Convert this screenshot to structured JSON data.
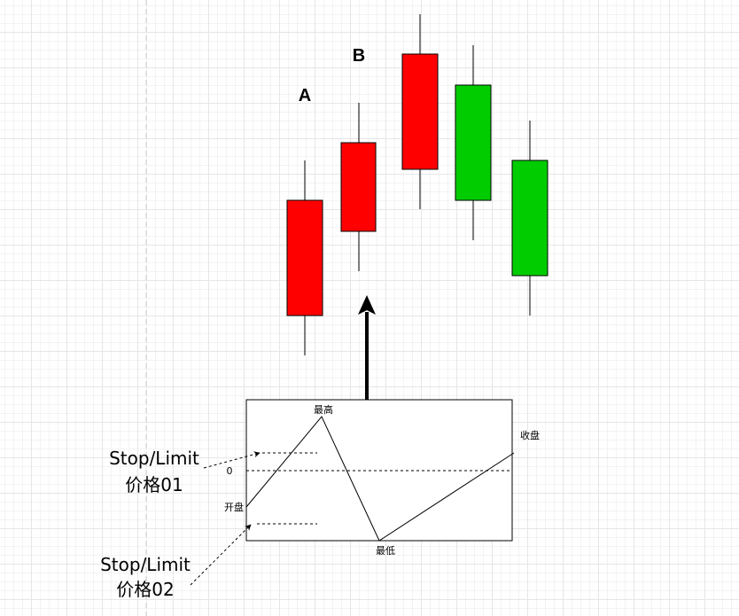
{
  "labels": {
    "a": "A",
    "b": "B"
  },
  "ohlc_box": {
    "high": "最高",
    "close": "收盘",
    "zero": "0",
    "open": "开盘",
    "low": "最低"
  },
  "annotations": [
    {
      "line1": "Stop/Limit",
      "line2": "价格01"
    },
    {
      "line1": "Stop/Limit",
      "line2": "价格02"
    }
  ]
}
